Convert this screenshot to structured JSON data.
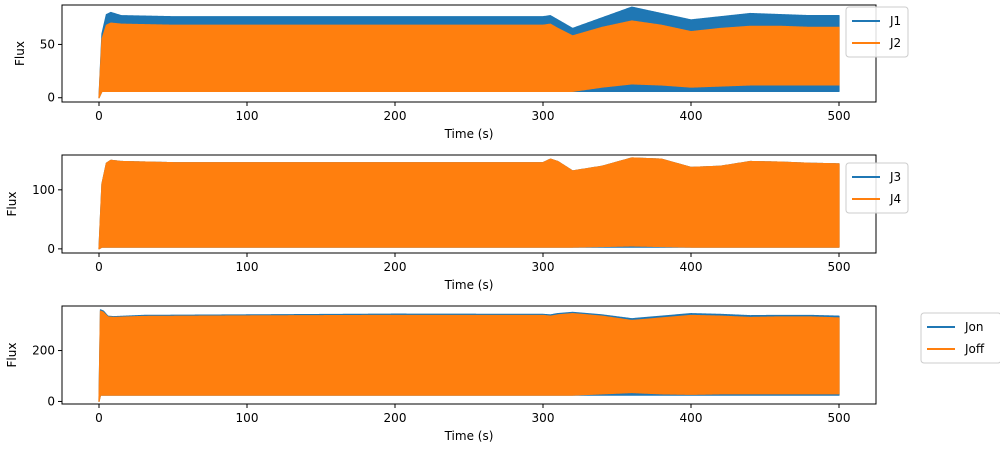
{
  "colors": {
    "series_1": "#1f77b4",
    "series_2": "#ff7f0e",
    "axes": "#000000",
    "legend_border": "#cccccc"
  },
  "chart_data": [
    {
      "type": "line",
      "xlabel": "Time (s)",
      "ylabel": "Flux",
      "xlim": [
        -25,
        525
      ],
      "ylim": [
        -4,
        87
      ],
      "xticks": [
        0,
        100,
        200,
        300,
        400,
        500
      ],
      "xtick_labels": [
        "0",
        "100",
        "200",
        "300",
        "400",
        "500"
      ],
      "yticks": [
        0,
        50
      ],
      "ytick_labels": [
        "0",
        "50"
      ],
      "grid": false,
      "legend_position": "outside-right-top",
      "series": [
        {
          "name": "J1",
          "color": "#1f77b4",
          "oscillating": true,
          "t": [
            0,
            2,
            5,
            8,
            15,
            50,
            100,
            200,
            300,
            305,
            310,
            320,
            340,
            360,
            380,
            400,
            420,
            440,
            460,
            480,
            500
          ],
          "upper": [
            0,
            60,
            78,
            80,
            77,
            76,
            76,
            76,
            76,
            77,
            73,
            65,
            75,
            85,
            79,
            73,
            76,
            79,
            78,
            77,
            77
          ],
          "lower": [
            0,
            6,
            6,
            6,
            6,
            6,
            6,
            6,
            6,
            6,
            6,
            6,
            6,
            6,
            6,
            6,
            6,
            6,
            6,
            6,
            6
          ]
        },
        {
          "name": "J2",
          "color": "#ff7f0e",
          "oscillating": true,
          "t": [
            0,
            2,
            5,
            8,
            15,
            50,
            100,
            200,
            300,
            305,
            310,
            320,
            340,
            360,
            380,
            400,
            420,
            440,
            460,
            480,
            500
          ],
          "upper": [
            0,
            55,
            68,
            70,
            69,
            68,
            68,
            68,
            68,
            69,
            65,
            58,
            66,
            72,
            68,
            62,
            65,
            67,
            67,
            66,
            66
          ],
          "lower": [
            0,
            6,
            6,
            6,
            6,
            6,
            6,
            6,
            6,
            6,
            6,
            6,
            10,
            13,
            12,
            10,
            11,
            12,
            12,
            12,
            12
          ]
        }
      ]
    },
    {
      "type": "line",
      "xlabel": "Time (s)",
      "ylabel": "Flux",
      "xlim": [
        -25,
        525
      ],
      "ylim": [
        -7,
        159
      ],
      "xticks": [
        0,
        100,
        200,
        300,
        400,
        500
      ],
      "xtick_labels": [
        "0",
        "100",
        "200",
        "300",
        "400",
        "500"
      ],
      "yticks": [
        0,
        100
      ],
      "ytick_labels": [
        "0",
        "100"
      ],
      "grid": false,
      "legend_position": "outside-right-top",
      "series": [
        {
          "name": "J3",
          "color": "#1f77b4",
          "oscillating": true,
          "t": [
            0,
            2,
            5,
            8,
            15,
            50,
            100,
            200,
            300,
            305,
            310,
            320,
            340,
            360,
            380,
            400,
            420,
            440,
            460,
            480,
            500
          ],
          "upper": [
            0,
            110,
            145,
            150,
            148,
            146,
            146,
            146,
            146,
            152,
            148,
            132,
            140,
            154,
            152,
            138,
            140,
            148,
            147,
            145,
            144
          ],
          "lower": [
            0,
            3,
            3,
            3,
            3,
            3,
            3,
            3,
            3,
            3,
            3,
            3,
            3,
            3,
            3,
            3,
            3,
            3,
            3,
            3,
            3
          ]
        },
        {
          "name": "J4",
          "color": "#ff7f0e",
          "oscillating": true,
          "t": [
            0,
            2,
            5,
            8,
            15,
            50,
            100,
            200,
            300,
            305,
            310,
            320,
            340,
            360,
            380,
            400,
            420,
            440,
            460,
            480,
            500
          ],
          "upper": [
            0,
            110,
            145,
            150,
            148,
            146,
            146,
            146,
            146,
            152,
            148,
            132,
            140,
            154,
            152,
            138,
            140,
            148,
            147,
            145,
            144
          ],
          "lower": [
            0,
            3,
            3,
            3,
            3,
            3,
            3,
            3,
            3,
            3,
            3,
            3,
            4,
            5,
            4,
            3,
            3,
            3,
            3,
            3,
            3
          ]
        }
      ]
    },
    {
      "type": "line",
      "xlabel": "Time (s)",
      "ylabel": "Flux",
      "xlim": [
        -25,
        525
      ],
      "ylim": [
        -10,
        375
      ],
      "xticks": [
        0,
        100,
        200,
        300,
        400,
        500
      ],
      "xtick_labels": [
        "0",
        "100",
        "200",
        "300",
        "400",
        "500"
      ],
      "yticks": [
        0,
        200
      ],
      "ytick_labels": [
        "0",
        "200"
      ],
      "grid": false,
      "legend_position": "outside-right-top",
      "series": [
        {
          "name": "Jon",
          "color": "#1f77b4",
          "oscillating": true,
          "t": [
            0,
            1,
            3,
            6,
            10,
            30,
            100,
            200,
            300,
            305,
            310,
            320,
            340,
            360,
            380,
            400,
            420,
            440,
            460,
            480,
            500
          ],
          "upper": [
            0,
            360,
            355,
            335,
            333,
            338,
            340,
            343,
            342,
            340,
            345,
            350,
            340,
            325,
            335,
            345,
            342,
            337,
            338,
            338,
            335
          ],
          "lower": [
            0,
            25,
            25,
            25,
            25,
            25,
            25,
            25,
            25,
            25,
            25,
            25,
            25,
            25,
            25,
            25,
            25,
            25,
            25,
            25,
            25
          ]
        },
        {
          "name": "Joff",
          "color": "#ff7f0e",
          "oscillating": true,
          "t": [
            0,
            1,
            3,
            6,
            10,
            30,
            100,
            200,
            300,
            305,
            310,
            320,
            340,
            360,
            380,
            400,
            420,
            440,
            460,
            480,
            500
          ],
          "upper": [
            0,
            355,
            350,
            332,
            330,
            334,
            336,
            338,
            338,
            335,
            340,
            345,
            335,
            318,
            328,
            338,
            335,
            330,
            332,
            332,
            328
          ],
          "lower": [
            0,
            25,
            25,
            25,
            25,
            25,
            25,
            25,
            25,
            25,
            25,
            25,
            30,
            35,
            30,
            28,
            30,
            30,
            30,
            30,
            30
          ]
        }
      ]
    }
  ]
}
